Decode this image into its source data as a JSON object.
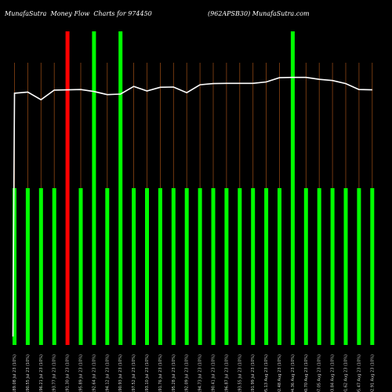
{
  "header": {
    "title_left": "MunafaSutra  Money Flow  Charts for 974450",
    "title_right": "(962APSB30) MunafaSutra.com"
  },
  "chart_data": {
    "type": "bar",
    "colors": {
      "up": "#00ff00",
      "down": "#ff0000",
      "line": "#ffffff",
      "grid": "#8b4513",
      "background": "#000000"
    },
    "categories": [
      "10 Jul 2023",
      "11 Jul 2023",
      "12 Jul 2023",
      "13 Jul 2023",
      "14 Jul 2023",
      "17 Jul 2023",
      "18 Jul 2023",
      "19 Jul 2023",
      "20 Jul 2023",
      "21 Jul 2023",
      "24 Jul 2023",
      "25 Jul 2023",
      "26 Jul 2023",
      "27 Jul 2023",
      "28 Jul 2023",
      "31 Jul 2023",
      "01 Aug 2023",
      "02 Aug 2023",
      "03 Aug 2023",
      "04 Aug 2023",
      "07 Aug 2023",
      "08 Aug 2023",
      "09 Aug 2023",
      "10 Aug 2023",
      "11 Aug 2023",
      "14 Aug 2023",
      "16 Aug 2023",
      "17 Aug 2023"
    ],
    "tick_labels": [
      "10189.08 Jul 23 (10%)",
      "10190.55 Jul 23 (10%)",
      "10196.21 Jul 23 (10%)",
      "10193.77 Jul 23 (10%)",
      "10191.30 Jul 23 (10%)",
      "10195.89 Jul 23 (10%)",
      "10192.64 Jul 23 (10%)",
      "10194.12 Jul 23 (10%)",
      "10190.93 Jul 23 (10%)",
      "10197.52 Jul 23 (10%)",
      "10193.10 Jul 23 (10%)",
      "10191.76 Jul 23 (10%)",
      "10195.28 Jul 23 (10%)",
      "10192.09 Jul 23 (10%)",
      "10194.73 Jul 23 (10%)",
      "10190.41 Jul 23 (10%)",
      "10196.87 Jul 23 (10%)",
      "10193.55 Jul 23 (10%)",
      "10191.99 Jul 23 (10%)",
      "10195.13 Aug 23 (10%)",
      "10192.48 Aug 23 (10%)",
      "10194.36 Aug 23 (10%)",
      "10190.70 Aug 23 (10%)",
      "10197.05 Aug 23 (10%)",
      "10193.84 Aug 23 (10%)",
      "10191.62 Aug 23 (10%)",
      "10195.47 Aug 23 (10%)",
      "10192.91 Aug 23 (10%)"
    ],
    "values": [
      200,
      200,
      200,
      200,
      400,
      200,
      400,
      200,
      400,
      200,
      200,
      200,
      200,
      200,
      200,
      200,
      200,
      200,
      200,
      200,
      200,
      400,
      200,
      200,
      200,
      200,
      200,
      200
    ],
    "directions": [
      "up",
      "up",
      "up",
      "up",
      "down",
      "up",
      "up",
      "up",
      "up",
      "up",
      "up",
      "up",
      "up",
      "up",
      "up",
      "up",
      "up",
      "up",
      "up",
      "up",
      "up",
      "up",
      "up",
      "up",
      "up",
      "up",
      "up",
      "up"
    ],
    "price_line": [
      10189.2,
      10189.6,
      10186.9,
      10190.3,
      10190.4,
      10190.5,
      10189.8,
      10188.7,
      10188.9,
      10191.6,
      10190.0,
      10191.3,
      10191.4,
      10189.4,
      10192.2,
      10192.6,
      10192.7,
      10192.7,
      10192.7,
      10193.2,
      10194.7,
      10194.8,
      10194.8,
      10194.1,
      10193.7,
      10192.6,
      10190.5,
      10190.4
    ],
    "line_start": 10103.0,
    "ylim_volume": [
      0,
      400
    ],
    "ylim_price": [
      10100,
      10200
    ]
  }
}
